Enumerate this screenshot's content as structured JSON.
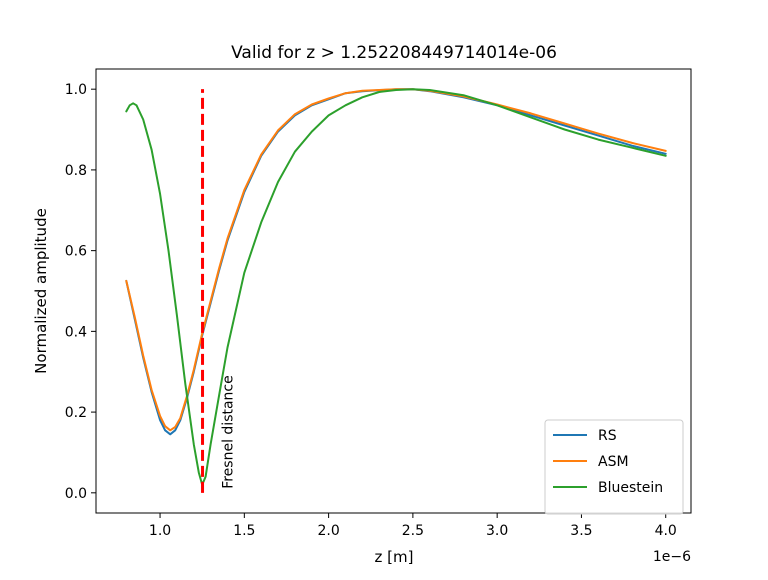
{
  "chart_data": {
    "type": "line",
    "title": "Valid for z > 1.252208449714014e-06",
    "xlabel": "z [m]",
    "ylabel": "Normalized amplitude",
    "x_offset_label": "1e−6",
    "xlim": [
      0.62,
      4.15
    ],
    "ylim": [
      -0.05,
      1.05
    ],
    "xticks": [
      1.0,
      1.5,
      2.0,
      2.5,
      3.0,
      3.5,
      4.0
    ],
    "xtick_labels": [
      "1.0",
      "1.5",
      "2.0",
      "2.5",
      "3.0",
      "3.5",
      "4.0"
    ],
    "yticks": [
      0.0,
      0.2,
      0.4,
      0.6,
      0.8,
      1.0
    ],
    "ytick_labels": [
      "0.0",
      "0.2",
      "0.4",
      "0.6",
      "0.8",
      "1.0"
    ],
    "grid": false,
    "legend_position": "lower right",
    "series": [
      {
        "name": "RS",
        "color": "#1f77b4",
        "points": [
          [
            0.8,
            0.525
          ],
          [
            0.85,
            0.43
          ],
          [
            0.9,
            0.335
          ],
          [
            0.95,
            0.25
          ],
          [
            1.0,
            0.18
          ],
          [
            1.03,
            0.155
          ],
          [
            1.06,
            0.145
          ],
          [
            1.09,
            0.155
          ],
          [
            1.12,
            0.18
          ],
          [
            1.16,
            0.235
          ],
          [
            1.2,
            0.3
          ],
          [
            1.25,
            0.39
          ],
          [
            1.3,
            0.47
          ],
          [
            1.35,
            0.55
          ],
          [
            1.4,
            0.625
          ],
          [
            1.5,
            0.745
          ],
          [
            1.6,
            0.835
          ],
          [
            1.7,
            0.895
          ],
          [
            1.8,
            0.935
          ],
          [
            1.9,
            0.96
          ],
          [
            2.0,
            0.975
          ],
          [
            2.1,
            0.99
          ],
          [
            2.2,
            0.995
          ],
          [
            2.4,
            1.0
          ],
          [
            2.5,
            1.0
          ],
          [
            2.6,
            0.995
          ],
          [
            2.8,
            0.98
          ],
          [
            3.0,
            0.96
          ],
          [
            3.2,
            0.935
          ],
          [
            3.4,
            0.91
          ],
          [
            3.6,
            0.885
          ],
          [
            3.8,
            0.86
          ],
          [
            4.0,
            0.84
          ]
        ]
      },
      {
        "name": "ASM",
        "color": "#ff7f0e",
        "points": [
          [
            0.8,
            0.525
          ],
          [
            0.85,
            0.435
          ],
          [
            0.9,
            0.34
          ],
          [
            0.95,
            0.255
          ],
          [
            1.0,
            0.19
          ],
          [
            1.03,
            0.165
          ],
          [
            1.06,
            0.155
          ],
          [
            1.09,
            0.163
          ],
          [
            1.12,
            0.185
          ],
          [
            1.16,
            0.24
          ],
          [
            1.2,
            0.305
          ],
          [
            1.25,
            0.395
          ],
          [
            1.3,
            0.475
          ],
          [
            1.35,
            0.555
          ],
          [
            1.4,
            0.63
          ],
          [
            1.5,
            0.75
          ],
          [
            1.6,
            0.838
          ],
          [
            1.7,
            0.898
          ],
          [
            1.8,
            0.938
          ],
          [
            1.9,
            0.962
          ],
          [
            2.0,
            0.977
          ],
          [
            2.1,
            0.99
          ],
          [
            2.2,
            0.996
          ],
          [
            2.4,
            1.0
          ],
          [
            2.5,
            1.0
          ],
          [
            2.6,
            0.996
          ],
          [
            2.8,
            0.982
          ],
          [
            3.0,
            0.962
          ],
          [
            3.2,
            0.94
          ],
          [
            3.4,
            0.915
          ],
          [
            3.6,
            0.89
          ],
          [
            3.8,
            0.867
          ],
          [
            4.0,
            0.847
          ]
        ]
      },
      {
        "name": "Bluestein",
        "color": "#2ca02c",
        "points": [
          [
            0.8,
            0.945
          ],
          [
            0.82,
            0.96
          ],
          [
            0.84,
            0.965
          ],
          [
            0.86,
            0.96
          ],
          [
            0.9,
            0.925
          ],
          [
            0.95,
            0.85
          ],
          [
            1.0,
            0.74
          ],
          [
            1.05,
            0.6
          ],
          [
            1.1,
            0.44
          ],
          [
            1.15,
            0.27
          ],
          [
            1.2,
            0.12
          ],
          [
            1.23,
            0.05
          ],
          [
            1.25,
            0.02
          ],
          [
            1.27,
            0.04
          ],
          [
            1.3,
            0.12
          ],
          [
            1.35,
            0.24
          ],
          [
            1.4,
            0.36
          ],
          [
            1.5,
            0.545
          ],
          [
            1.6,
            0.67
          ],
          [
            1.7,
            0.77
          ],
          [
            1.8,
            0.845
          ],
          [
            1.9,
            0.895
          ],
          [
            2.0,
            0.935
          ],
          [
            2.1,
            0.96
          ],
          [
            2.2,
            0.98
          ],
          [
            2.3,
            0.993
          ],
          [
            2.4,
            0.998
          ],
          [
            2.5,
            1.0
          ],
          [
            2.6,
            0.998
          ],
          [
            2.8,
            0.985
          ],
          [
            3.0,
            0.96
          ],
          [
            3.2,
            0.93
          ],
          [
            3.4,
            0.9
          ],
          [
            3.6,
            0.875
          ],
          [
            3.8,
            0.855
          ],
          [
            4.0,
            0.835
          ]
        ]
      }
    ],
    "annotations": [
      {
        "type": "vline",
        "x": 1.252,
        "y_range": [
          0.0,
          1.0
        ],
        "color": "#ff0000",
        "style": "dashed"
      },
      {
        "type": "text",
        "text": "Fresnel distance",
        "x": 1.4,
        "y": 0.0,
        "color": "#ff0000",
        "rotation": 90
      }
    ]
  }
}
